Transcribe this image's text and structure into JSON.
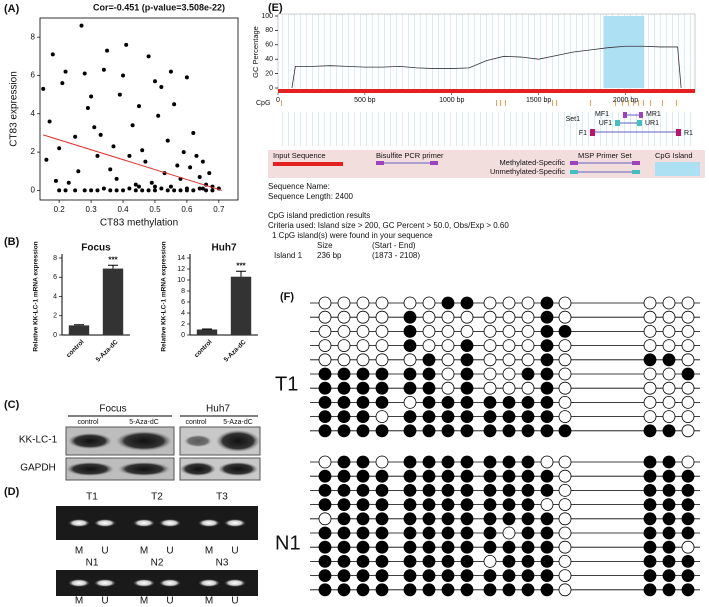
{
  "panel_labels": [
    "(A)",
    "(B)",
    "(C)",
    "(D)",
    "(E)",
    "(F)"
  ],
  "chart_data": [
    {
      "type": "scatter",
      "title": "Cor=-0.451 (p-value=3.508e-22)",
      "xlabel": "CT83 methylation",
      "ylabel": "CT83 expression",
      "x": [
        0.15,
        0.16,
        0.17,
        0.18,
        0.19,
        0.2,
        0.21,
        0.22,
        0.23,
        0.25,
        0.26,
        0.27,
        0.28,
        0.29,
        0.3,
        0.31,
        0.32,
        0.33,
        0.34,
        0.35,
        0.36,
        0.37,
        0.38,
        0.39,
        0.4,
        0.41,
        0.42,
        0.43,
        0.44,
        0.45,
        0.46,
        0.47,
        0.48,
        0.49,
        0.5,
        0.51,
        0.52,
        0.53,
        0.54,
        0.55,
        0.56,
        0.57,
        0.58,
        0.59,
        0.6,
        0.61,
        0.62,
        0.63,
        0.64,
        0.65,
        0.66,
        0.67,
        0.68,
        0.7,
        0.3,
        0.32,
        0.34,
        0.36,
        0.38,
        0.4,
        0.42,
        0.44,
        0.46,
        0.48,
        0.5,
        0.52,
        0.54,
        0.56,
        0.58,
        0.6,
        0.62,
        0.64,
        0.66,
        0.68,
        0.2,
        0.22,
        0.25,
        0.28,
        0.45,
        0.5,
        0.55,
        0.6,
        0.65
      ],
      "values": [
        5.3,
        1.6,
        3.6,
        7.1,
        0.5,
        2.2,
        5.6,
        6.2,
        0.4,
        2.8,
        1.0,
        8.6,
        6.1,
        4.3,
        4.9,
        3.3,
        1.8,
        2.9,
        6.3,
        7.3,
        1.1,
        2.3,
        0.6,
        5.0,
        6.0,
        7.6,
        1.8,
        3.4,
        0.3,
        4.4,
        2.1,
        1.5,
        7.0,
        0.4,
        5.7,
        3.9,
        5.4,
        0.9,
        2.6,
        6.2,
        4.5,
        1.3,
        0.6,
        2.0,
        5.9,
        1.2,
        3.0,
        1.8,
        0.7,
        1.5,
        0.3,
        0.9,
        0.2,
        0.1,
        0,
        0,
        0.1,
        0,
        0,
        0,
        0.1,
        0,
        0,
        0,
        0,
        0.1,
        0,
        0,
        0,
        0,
        0,
        0.1,
        0,
        0,
        0,
        0,
        0,
        0,
        0.2,
        0.2,
        0.2,
        0.1,
        0.1
      ],
      "color": "#000000",
      "fit": {
        "x": [
          0.15,
          0.71
        ],
        "values": [
          2.9,
          0.0
        ],
        "color": "#e0302a"
      },
      "xlim": [
        0.14,
        0.76
      ],
      "ylim": [
        -0.5,
        9
      ],
      "xticks": [
        0.2,
        0.3,
        0.4,
        0.5,
        0.6,
        0.7
      ],
      "yticks": [
        0,
        2,
        4,
        6,
        8
      ]
    },
    {
      "type": "bar",
      "title": "Focus",
      "ylabel": "Relative KK-LC-1 mRNA expression",
      "categories": [
        "control",
        "5-Aza-dC"
      ],
      "values": [
        1.0,
        6.9
      ],
      "errors": [
        0.06,
        0.35
      ],
      "annotation": "***",
      "color": "#333333",
      "ylim": [
        0,
        8
      ],
      "yticks": [
        0,
        2,
        4,
        6,
        8
      ]
    },
    {
      "type": "bar",
      "title": "Huh7",
      "ylabel": "Relative KK-LC-1 mRNA expression",
      "categories": [
        "control",
        "5-Aza-dC"
      ],
      "values": [
        1.0,
        10.6
      ],
      "errors": [
        0.1,
        1.0
      ],
      "annotation": "***",
      "color": "#333333",
      "ylim": [
        0,
        14
      ],
      "yticks": [
        0,
        2,
        4,
        6,
        8,
        10,
        12,
        14
      ]
    },
    {
      "type": "line",
      "ylabel": "GC Percentage",
      "x": [
        80,
        100,
        200,
        300,
        400,
        500,
        600,
        700,
        800,
        900,
        1000,
        1100,
        1200,
        1300,
        1400,
        1500,
        1600,
        1700,
        1800,
        1900,
        2000,
        2100,
        2200,
        2300,
        2320
      ],
      "values": [
        0,
        30,
        30,
        31,
        30,
        29,
        29,
        30,
        28,
        27,
        27,
        28,
        38,
        44,
        43,
        40,
        45,
        50,
        53,
        56,
        58,
        58,
        57,
        57,
        0
      ],
      "color": "#333333",
      "highlight": {
        "start": 1873,
        "end": 2108,
        "color": "#aee0f4"
      },
      "xlim": [
        0,
        2400
      ],
      "ylim": [
        0,
        100
      ],
      "yticks": [
        0,
        20,
        40,
        60,
        80,
        100
      ],
      "xticks": [
        0,
        {
          "value": 500,
          "label": "500 bp"
        },
        {
          "value": 1000,
          "label": "1000 bp"
        },
        {
          "value": 1500,
          "label": "1500 bp"
        },
        {
          "value": 2000,
          "label": "2000 bp"
        }
      ]
    }
  ],
  "western": {
    "headers": [
      "Focus",
      "Huh7"
    ],
    "lanes": [
      "control",
      "5-Aza-dC"
    ],
    "rows": [
      "KK-LC-1",
      "GAPDH"
    ]
  },
  "gel": {
    "top": [
      "T1",
      "T2",
      "T3"
    ],
    "bottom": [
      "N1",
      "N2",
      "N3"
    ],
    "lanes": [
      "M",
      "U"
    ]
  },
  "cpg_map": {
    "cpg_label": "CpG",
    "primers": [
      "MF1",
      "MR1",
      "Set1",
      "UF1",
      "UR1",
      "F1",
      "R1"
    ],
    "legend": [
      "Input Sequence",
      "Bisulfite PCR primer",
      "Methylated-Specific",
      "Unmethylated-Specific",
      "MSP Primer Set",
      "CpG Island"
    ]
  },
  "info": {
    "sequence_name": "Sequence Name:",
    "sequence_length": "Sequence Length: 2400",
    "heading": "CpG island prediction results",
    "criteria": "Criteria used: Island size > 200, GC Percent > 50.0, Obs/Exp > 0.60",
    "found": "1 CpG island(s) were found in your sequence",
    "col_size": "Size",
    "col_range": "(Start - End)",
    "island_name": "Island 1",
    "island_size": "236 bp",
    "island_range": "(1873 - 2108)"
  },
  "methylation": {
    "groups": [
      {
        "label": "T1",
        "rows": [
          [
            0,
            0,
            0,
            0,
            0,
            0,
            1,
            1,
            0,
            0,
            0,
            1,
            0,
            0,
            0,
            0
          ],
          [
            0,
            0,
            0,
            0,
            1,
            0,
            0,
            0,
            0,
            0,
            0,
            1,
            0,
            0,
            0,
            0
          ],
          [
            0,
            0,
            0,
            0,
            1,
            0,
            0,
            0,
            0,
            0,
            0,
            1,
            1,
            0,
            0,
            0
          ],
          [
            0,
            0,
            0,
            0,
            1,
            0,
            0,
            1,
            0,
            0,
            0,
            1,
            0,
            0,
            0,
            0
          ],
          [
            0,
            0,
            0,
            0,
            0,
            1,
            0,
            1,
            0,
            0,
            0,
            1,
            0,
            1,
            1,
            0
          ],
          [
            1,
            1,
            1,
            1,
            1,
            1,
            0,
            1,
            0,
            0,
            1,
            1,
            0,
            0,
            0,
            1
          ],
          [
            1,
            1,
            1,
            1,
            1,
            1,
            0,
            1,
            0,
            0,
            0,
            1,
            0,
            0,
            0,
            0
          ],
          [
            1,
            1,
            1,
            1,
            0,
            1,
            1,
            1,
            1,
            1,
            1,
            1,
            0,
            0,
            0,
            0
          ],
          [
            1,
            1,
            1,
            0,
            1,
            1,
            1,
            1,
            1,
            1,
            1,
            1,
            0,
            0,
            0,
            0
          ],
          [
            1,
            1,
            1,
            1,
            1,
            1,
            1,
            1,
            1,
            1,
            1,
            1,
            1,
            1,
            1,
            0
          ]
        ]
      },
      {
        "label": "N1",
        "rows": [
          [
            0,
            1,
            1,
            0,
            1,
            1,
            1,
            1,
            1,
            1,
            1,
            0,
            0,
            1,
            1,
            0
          ],
          [
            1,
            1,
            1,
            1,
            1,
            1,
            1,
            1,
            1,
            1,
            1,
            1,
            0,
            1,
            1,
            1
          ],
          [
            1,
            1,
            1,
            1,
            1,
            1,
            1,
            1,
            1,
            1,
            1,
            1,
            0,
            1,
            1,
            1
          ],
          [
            1,
            1,
            1,
            1,
            1,
            1,
            1,
            1,
            1,
            1,
            1,
            0,
            0,
            1,
            1,
            1
          ],
          [
            0,
            1,
            1,
            1,
            1,
            1,
            1,
            1,
            1,
            1,
            1,
            1,
            0,
            1,
            1,
            1
          ],
          [
            1,
            1,
            1,
            1,
            1,
            1,
            1,
            1,
            1,
            0,
            1,
            1,
            0,
            1,
            1,
            1
          ],
          [
            1,
            1,
            1,
            1,
            1,
            1,
            1,
            1,
            1,
            1,
            1,
            1,
            0,
            1,
            1,
            0
          ],
          [
            1,
            1,
            1,
            1,
            1,
            1,
            1,
            1,
            0,
            1,
            1,
            1,
            0,
            1,
            1,
            1
          ],
          [
            1,
            1,
            1,
            1,
            1,
            1,
            1,
            1,
            1,
            1,
            1,
            1,
            0,
            1,
            1,
            1
          ],
          [
            1,
            1,
            1,
            1,
            1,
            1,
            1,
            1,
            1,
            1,
            1,
            1,
            0,
            1,
            1,
            1
          ]
        ]
      }
    ]
  }
}
